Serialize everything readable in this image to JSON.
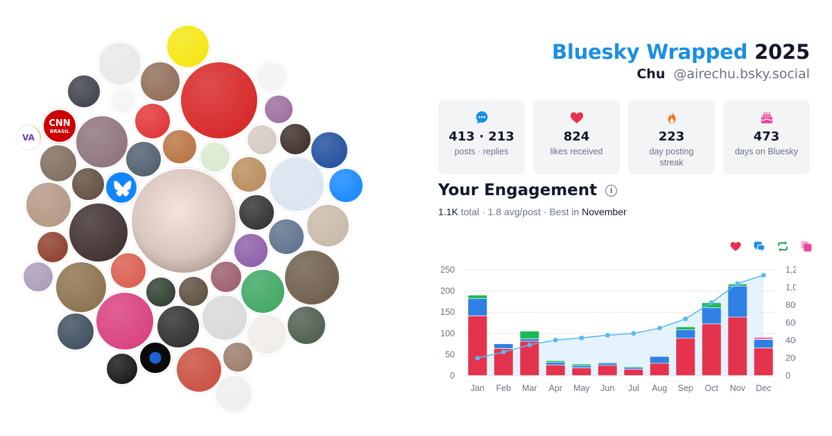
{
  "header": {
    "brand": "Bluesky Wrapped",
    "year": "2025",
    "display_name": "Chu",
    "handle": "@airechu.bsky.social"
  },
  "stats": [
    {
      "icon": "speech-bubble-icon",
      "value": "413 · 213",
      "label": "posts · replies",
      "color": "#1a8fe3"
    },
    {
      "icon": "heart-icon",
      "value": "824",
      "label": "likes received",
      "color": "#e5334d"
    },
    {
      "icon": "flame-icon",
      "value": "223",
      "label": "day posting streak",
      "color": "#f97316"
    },
    {
      "icon": "cake-icon",
      "value": "473",
      "label": "days on Bluesky",
      "color": "#ec4899"
    }
  ],
  "engagement": {
    "title": "Your Engagement",
    "total_value": "1.1K",
    "total_label": "total",
    "avg_value": "1.8",
    "avg_label": "avg/post",
    "best_label": "Best in",
    "best_month": "November",
    "legend_icons": [
      {
        "icon": "likes-heart-icon",
        "color": "#e5334d"
      },
      {
        "icon": "replies-bubble-icon",
        "color": "#1a8fe3"
      },
      {
        "icon": "reposts-icon",
        "color": "#16a34a"
      },
      {
        "icon": "quotes-icon",
        "color": "#ec4899"
      }
    ]
  },
  "chart_data": {
    "type": "bar",
    "stacked": true,
    "categories": [
      "Jan",
      "Feb",
      "Mar",
      "Apr",
      "May",
      "Jun",
      "Jul",
      "Aug",
      "Sep",
      "Oct",
      "Nov",
      "Dec"
    ],
    "ylim": [
      0,
      250
    ],
    "y_ticks": [
      0,
      50,
      100,
      150,
      200,
      250
    ],
    "y2lim": [
      0,
      1200
    ],
    "y2_ticks": [
      "0",
      "200",
      "400",
      "600",
      "800",
      "1,000",
      "1,200"
    ],
    "grid": true,
    "series": [
      {
        "key": "likes",
        "color": "#e5334d",
        "values": [
          141,
          64,
          81,
          25,
          18,
          24,
          15,
          29,
          88,
          122,
          138,
          65
        ]
      },
      {
        "key": "replies",
        "color": "#2f80e4",
        "values": [
          41,
          11,
          6,
          6,
          5,
          5,
          4,
          16,
          20,
          38,
          73,
          20
        ]
      },
      {
        "key": "reposts",
        "color": "#1db954",
        "values": [
          8,
          1,
          18,
          4,
          4,
          2,
          2,
          1,
          7,
          12,
          5,
          1
        ]
      },
      {
        "key": "quotes",
        "color": "#ec4899",
        "values": [
          0,
          0,
          0,
          0,
          0,
          0,
          0,
          0,
          0,
          0,
          0,
          4
        ]
      }
    ],
    "cumulative": {
      "color": "#5bb9ef",
      "fill": "#cfe9fb",
      "values": [
        200,
        270,
        350,
        405,
        430,
        460,
        480,
        540,
        645,
        830,
        1045,
        1140
      ]
    }
  },
  "avatars": [
    {
      "name": "avatar-main",
      "color": "#c9b9b4"
    },
    {
      "name": "avatar-1",
      "color": "#7a4a2c"
    },
    {
      "name": "avatar-2",
      "color": "#f5e50a"
    },
    {
      "name": "avatar-3",
      "color": "#e8e8e8"
    },
    {
      "name": "avatar-4",
      "color": "#3b3d48"
    },
    {
      "name": "avatar-5",
      "color": "#8e6b55"
    },
    {
      "name": "avatar-6",
      "color": "#d62020"
    },
    {
      "name": "avatar-7",
      "color": "#f2f2f2"
    },
    {
      "name": "avatar-8",
      "color": "#f4f4f4"
    },
    {
      "name": "avatar-9",
      "color": "#9b6a9e"
    },
    {
      "name": "avatar-10",
      "color": "#e03030"
    },
    {
      "name": "avatar-11",
      "color": "#2f2a28"
    },
    {
      "name": "avatar-12",
      "color": "#8b6f7a"
    },
    {
      "name": "avatar-13",
      "color": "#d3c9c0"
    },
    {
      "name": "avatar-14",
      "color": "#3a2a24"
    },
    {
      "name": "avatar-15",
      "color": "#e8c23a"
    },
    {
      "name": "avatar-16",
      "color": "#1c4b9b"
    },
    {
      "name": "avatar-17",
      "color": "#d8e9cf"
    },
    {
      "name": "avatar-18",
      "color": "#4c5b6a"
    },
    {
      "name": "avatar-19",
      "color": "#b7713e"
    },
    {
      "name": "avatar-20",
      "color": "#7c6a5a"
    },
    {
      "name": "avatar-21",
      "color": "#b88a5a"
    },
    {
      "name": "avatar-22",
      "color": "#d9e4f0"
    },
    {
      "name": "avatar-23",
      "color": "#1185fe"
    },
    {
      "name": "avatar-24",
      "color": "#5e4a3c"
    },
    {
      "name": "avatar-25",
      "color": "#5c5c5c"
    },
    {
      "name": "avatar-26",
      "color": "#b39582"
    },
    {
      "name": "avatar-27",
      "color": "#3a2a2a"
    },
    {
      "name": "avatar-28",
      "color": "#2d2d2d"
    },
    {
      "name": "avatar-29",
      "color": "#c7b8a8"
    },
    {
      "name": "avatar-30",
      "color": "#5b6e8a"
    },
    {
      "name": "avatar-31",
      "color": "#8a5ba8"
    },
    {
      "name": "avatar-32",
      "color": "#8b3b2a"
    },
    {
      "name": "avatar-33",
      "color": "#6b5a48"
    },
    {
      "name": "avatar-34",
      "color": "#8a6e4a"
    },
    {
      "name": "avatar-35",
      "color": "#d95a4a"
    },
    {
      "name": "avatar-36",
      "color": "#a89ab8"
    },
    {
      "name": "avatar-37",
      "color": "#9a5a6a"
    },
    {
      "name": "avatar-38",
      "color": "#3aa560"
    },
    {
      "name": "avatar-39",
      "color": "#2a3a2a"
    },
    {
      "name": "avatar-40",
      "color": "#5a4a3a"
    },
    {
      "name": "avatar-41",
      "color": "#d8d8d8"
    },
    {
      "name": "avatar-42",
      "color": "#2a2a2a"
    },
    {
      "name": "avatar-43",
      "color": "#d83a7a"
    },
    {
      "name": "avatar-44",
      "color": "#4a5a4a"
    },
    {
      "name": "avatar-45",
      "color": "#f0ece6"
    },
    {
      "name": "avatar-46",
      "color": "#3a4a5a"
    },
    {
      "name": "avatar-47",
      "color": "#2a8a3a"
    },
    {
      "name": "avatar-48",
      "color": "#9a7a68"
    },
    {
      "name": "avatar-49",
      "color": "#c84a3a"
    },
    {
      "name": "avatar-50",
      "color": "#111111"
    },
    {
      "name": "avatar-51",
      "color": "#eeeeee"
    },
    {
      "name": "avatar-52",
      "color": "#d9a03a"
    },
    {
      "name": "avatar-53",
      "color": "#7a6050"
    }
  ],
  "logo_avatars": {
    "cnn": "CNN",
    "cnn_sub": "BRASIL",
    "va": "VA"
  }
}
